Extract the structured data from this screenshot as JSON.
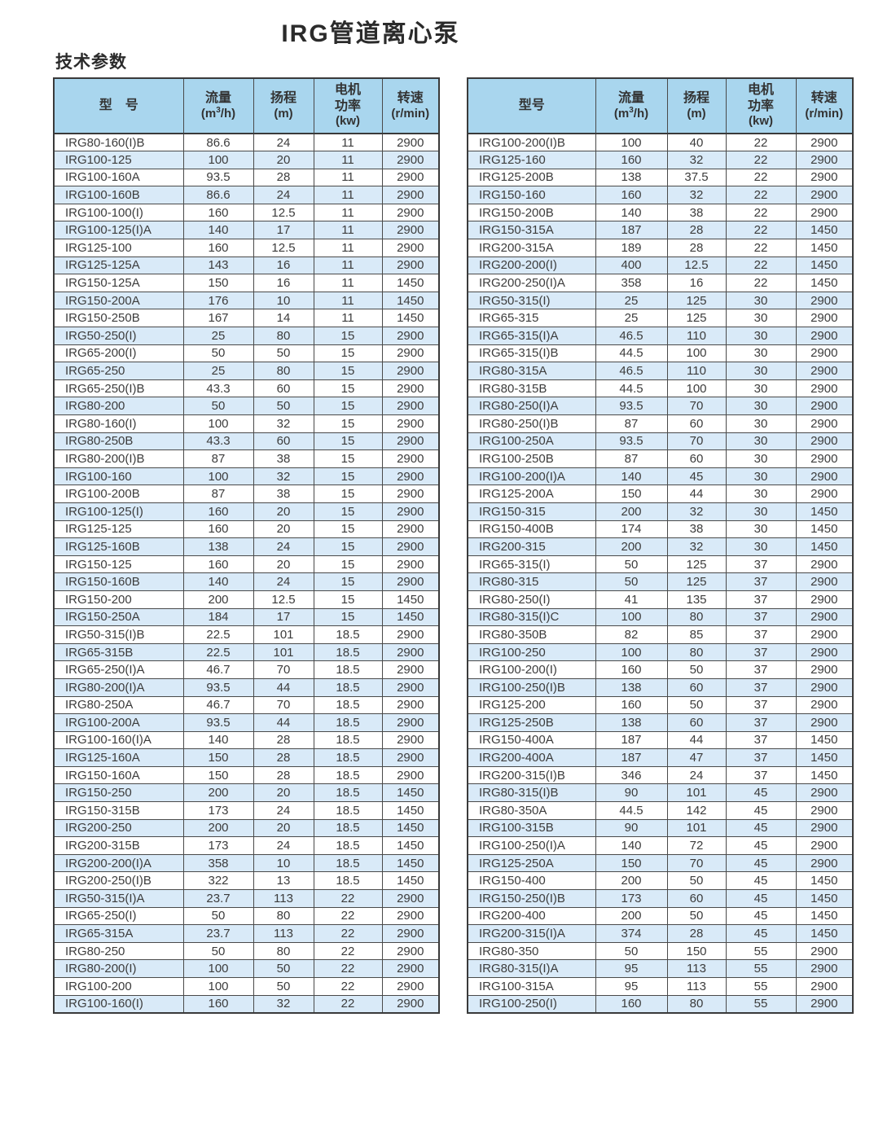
{
  "page": {
    "title": "IRG管道离心泵",
    "section_heading": "技术参数"
  },
  "colors": {
    "header_bg": "#a9d6ee",
    "stripe_bg": "#d9eaf8",
    "border": "#3a3a3a",
    "text": "#3c3c3c"
  },
  "tables": [
    {
      "headers": {
        "model": "型　号",
        "flow_label": "流量",
        "flow_unit_pre": "(m",
        "flow_unit_sup": "3",
        "flow_unit_post": "/h)",
        "head_label": "扬程",
        "head_unit": "(m)",
        "power_line1": "电机",
        "power_line2": "功率",
        "power_unit": "(kw)",
        "speed_label": "转速",
        "speed_unit": "(r/min)"
      },
      "rows": [
        [
          "IRG80-160(I)B",
          "86.6",
          "24",
          "11",
          "2900"
        ],
        [
          "IRG100-125",
          "100",
          "20",
          "11",
          "2900"
        ],
        [
          "IRG100-160A",
          "93.5",
          "28",
          "11",
          "2900"
        ],
        [
          "IRG100-160B",
          "86.6",
          "24",
          "11",
          "2900"
        ],
        [
          "IRG100-100(I)",
          "160",
          "12.5",
          "11",
          "2900"
        ],
        [
          "IRG100-125(I)A",
          "140",
          "17",
          "11",
          "2900"
        ],
        [
          "IRG125-100",
          "160",
          "12.5",
          "11",
          "2900"
        ],
        [
          "IRG125-125A",
          "143",
          "16",
          "11",
          "2900"
        ],
        [
          "IRG150-125A",
          "150",
          "16",
          "11",
          "1450"
        ],
        [
          "IRG150-200A",
          "176",
          "10",
          "11",
          "1450"
        ],
        [
          "IRG150-250B",
          "167",
          "14",
          "11",
          "1450"
        ],
        [
          "IRG50-250(I)",
          "25",
          "80",
          "15",
          "2900"
        ],
        [
          "IRG65-200(I)",
          "50",
          "50",
          "15",
          "2900"
        ],
        [
          "IRG65-250",
          "25",
          "80",
          "15",
          "2900"
        ],
        [
          "IRG65-250(I)B",
          "43.3",
          "60",
          "15",
          "2900"
        ],
        [
          "IRG80-200",
          "50",
          "50",
          "15",
          "2900"
        ],
        [
          "IRG80-160(I)",
          "100",
          "32",
          "15",
          "2900"
        ],
        [
          "IRG80-250B",
          "43.3",
          "60",
          "15",
          "2900"
        ],
        [
          "IRG80-200(I)B",
          "87",
          "38",
          "15",
          "2900"
        ],
        [
          "IRG100-160",
          "100",
          "32",
          "15",
          "2900"
        ],
        [
          "IRG100-200B",
          "87",
          "38",
          "15",
          "2900"
        ],
        [
          "IRG100-125(I)",
          "160",
          "20",
          "15",
          "2900"
        ],
        [
          "IRG125-125",
          "160",
          "20",
          "15",
          "2900"
        ],
        [
          "IRG125-160B",
          "138",
          "24",
          "15",
          "2900"
        ],
        [
          "IRG150-125",
          "160",
          "20",
          "15",
          "2900"
        ],
        [
          "IRG150-160B",
          "140",
          "24",
          "15",
          "2900"
        ],
        [
          "IRG150-200",
          "200",
          "12.5",
          "15",
          "1450"
        ],
        [
          "IRG150-250A",
          "184",
          "17",
          "15",
          "1450"
        ],
        [
          "IRG50-315(I)B",
          "22.5",
          "101",
          "18.5",
          "2900"
        ],
        [
          "IRG65-315B",
          "22.5",
          "101",
          "18.5",
          "2900"
        ],
        [
          "IRG65-250(I)A",
          "46.7",
          "70",
          "18.5",
          "2900"
        ],
        [
          "IRG80-200(I)A",
          "93.5",
          "44",
          "18.5",
          "2900"
        ],
        [
          "IRG80-250A",
          "46.7",
          "70",
          "18.5",
          "2900"
        ],
        [
          "IRG100-200A",
          "93.5",
          "44",
          "18.5",
          "2900"
        ],
        [
          "IRG100-160(I)A",
          "140",
          "28",
          "18.5",
          "2900"
        ],
        [
          "IRG125-160A",
          "150",
          "28",
          "18.5",
          "2900"
        ],
        [
          "IRG150-160A",
          "150",
          "28",
          "18.5",
          "2900"
        ],
        [
          "IRG150-250",
          "200",
          "20",
          "18.5",
          "1450"
        ],
        [
          "IRG150-315B",
          "173",
          "24",
          "18.5",
          "1450"
        ],
        [
          "IRG200-250",
          "200",
          "20",
          "18.5",
          "1450"
        ],
        [
          "IRG200-315B",
          "173",
          "24",
          "18.5",
          "1450"
        ],
        [
          "IRG200-200(I)A",
          "358",
          "10",
          "18.5",
          "1450"
        ],
        [
          "IRG200-250(I)B",
          "322",
          "13",
          "18.5",
          "1450"
        ],
        [
          "IRG50-315(I)A",
          "23.7",
          "113",
          "22",
          "2900"
        ],
        [
          "IRG65-250(I)",
          "50",
          "80",
          "22",
          "2900"
        ],
        [
          "IRG65-315A",
          "23.7",
          "113",
          "22",
          "2900"
        ],
        [
          "IRG80-250",
          "50",
          "80",
          "22",
          "2900"
        ],
        [
          "IRG80-200(I)",
          "100",
          "50",
          "22",
          "2900"
        ],
        [
          "IRG100-200",
          "100",
          "50",
          "22",
          "2900"
        ],
        [
          "IRG100-160(I)",
          "160",
          "32",
          "22",
          "2900"
        ]
      ]
    },
    {
      "headers": {
        "model": "型号",
        "flow_label": "流量",
        "flow_unit_pre": "(m",
        "flow_unit_sup": "3",
        "flow_unit_post": "/h)",
        "head_label": "扬程",
        "head_unit": "(m)",
        "power_line1": "电机",
        "power_line2": "功率",
        "power_unit": "(kw)",
        "speed_label": "转速",
        "speed_unit": "(r/min)"
      },
      "rows": [
        [
          "IRG100-200(I)B",
          "100",
          "40",
          "22",
          "2900"
        ],
        [
          "IRG125-160",
          "160",
          "32",
          "22",
          "2900"
        ],
        [
          "IRG125-200B",
          "138",
          "37.5",
          "22",
          "2900"
        ],
        [
          "IRG150-160",
          "160",
          "32",
          "22",
          "2900"
        ],
        [
          "IRG150-200B",
          "140",
          "38",
          "22",
          "2900"
        ],
        [
          "IRG150-315A",
          "187",
          "28",
          "22",
          "1450"
        ],
        [
          "IRG200-315A",
          "189",
          "28",
          "22",
          "1450"
        ],
        [
          "IRG200-200(I)",
          "400",
          "12.5",
          "22",
          "1450"
        ],
        [
          "IRG200-250(I)A",
          "358",
          "16",
          "22",
          "1450"
        ],
        [
          "IRG50-315(I)",
          "25",
          "125",
          "30",
          "2900"
        ],
        [
          "IRG65-315",
          "25",
          "125",
          "30",
          "2900"
        ],
        [
          "IRG65-315(I)A",
          "46.5",
          "110",
          "30",
          "2900"
        ],
        [
          "IRG65-315(I)B",
          "44.5",
          "100",
          "30",
          "2900"
        ],
        [
          "IRG80-315A",
          "46.5",
          "110",
          "30",
          "2900"
        ],
        [
          "IRG80-315B",
          "44.5",
          "100",
          "30",
          "2900"
        ],
        [
          "IRG80-250(I)A",
          "93.5",
          "70",
          "30",
          "2900"
        ],
        [
          "IRG80-250(I)B",
          "87",
          "60",
          "30",
          "2900"
        ],
        [
          "IRG100-250A",
          "93.5",
          "70",
          "30",
          "2900"
        ],
        [
          "IRG100-250B",
          "87",
          "60",
          "30",
          "2900"
        ],
        [
          "IRG100-200(I)A",
          "140",
          "45",
          "30",
          "2900"
        ],
        [
          "IRG125-200A",
          "150",
          "44",
          "30",
          "2900"
        ],
        [
          "IRG150-315",
          "200",
          "32",
          "30",
          "1450"
        ],
        [
          "IRG150-400B",
          "174",
          "38",
          "30",
          "1450"
        ],
        [
          "IRG200-315",
          "200",
          "32",
          "30",
          "1450"
        ],
        [
          "IRG65-315(I)",
          "50",
          "125",
          "37",
          "2900"
        ],
        [
          "IRG80-315",
          "50",
          "125",
          "37",
          "2900"
        ],
        [
          "IRG80-250(I)",
          "41",
          "135",
          "37",
          "2900"
        ],
        [
          "IRG80-315(I)C",
          "100",
          "80",
          "37",
          "2900"
        ],
        [
          "IRG80-350B",
          "82",
          "85",
          "37",
          "2900"
        ],
        [
          "IRG100-250",
          "100",
          "80",
          "37",
          "2900"
        ],
        [
          "IRG100-200(I)",
          "160",
          "50",
          "37",
          "2900"
        ],
        [
          "IRG100-250(I)B",
          "138",
          "60",
          "37",
          "2900"
        ],
        [
          "IRG125-200",
          "160",
          "50",
          "37",
          "2900"
        ],
        [
          "IRG125-250B",
          "138",
          "60",
          "37",
          "2900"
        ],
        [
          "IRG150-400A",
          "187",
          "44",
          "37",
          "1450"
        ],
        [
          "IRG200-400A",
          "187",
          "47",
          "37",
          "1450"
        ],
        [
          "IRG200-315(I)B",
          "346",
          "24",
          "37",
          "1450"
        ],
        [
          "IRG80-315(I)B",
          "90",
          "101",
          "45",
          "2900"
        ],
        [
          "IRG80-350A",
          "44.5",
          "142",
          "45",
          "2900"
        ],
        [
          "IRG100-315B",
          "90",
          "101",
          "45",
          "2900"
        ],
        [
          "IRG100-250(I)A",
          "140",
          "72",
          "45",
          "2900"
        ],
        [
          "IRG125-250A",
          "150",
          "70",
          "45",
          "2900"
        ],
        [
          "IRG150-400",
          "200",
          "50",
          "45",
          "1450"
        ],
        [
          "IRG150-250(I)B",
          "173",
          "60",
          "45",
          "1450"
        ],
        [
          "IRG200-400",
          "200",
          "50",
          "45",
          "1450"
        ],
        [
          "IRG200-315(I)A",
          "374",
          "28",
          "45",
          "1450"
        ],
        [
          "IRG80-350",
          "50",
          "150",
          "55",
          "2900"
        ],
        [
          "IRG80-315(I)A",
          "95",
          "113",
          "55",
          "2900"
        ],
        [
          "IRG100-315A",
          "95",
          "113",
          "55",
          "2900"
        ],
        [
          "IRG100-250(I)",
          "160",
          "80",
          "55",
          "2900"
        ]
      ]
    }
  ]
}
